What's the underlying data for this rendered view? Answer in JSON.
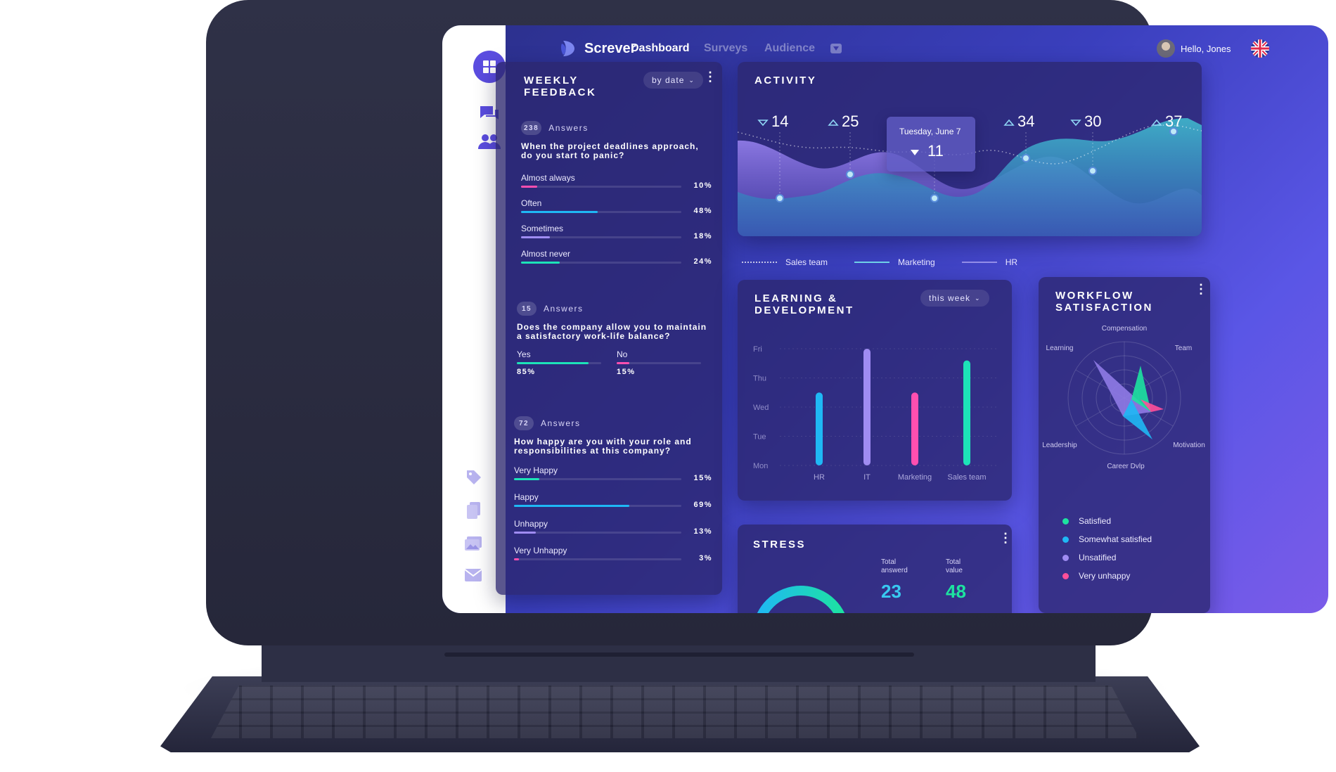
{
  "app": {
    "name": "Screver"
  },
  "topnav": [
    {
      "label": "Dashboard",
      "active": true
    },
    {
      "label": "Surveys",
      "active": false
    },
    {
      "label": "Audience",
      "active": false
    }
  ],
  "user": {
    "greeting": "Hello, Jones"
  },
  "sidebar": {
    "top_icons": [
      "dashboard-icon",
      "chat-icon",
      "users-icon"
    ],
    "bottom_icons": [
      "tag-icon",
      "document-icon",
      "gallery-icon",
      "mail-icon"
    ]
  },
  "weekly_feedback": {
    "title": "WEEKLY\nFEEDBACK",
    "filter": "by date",
    "q1": {
      "count": "238",
      "answers_label": "Answers",
      "question": "When the project deadlines approach, do you start to panic?",
      "options": [
        {
          "label": "Almost always",
          "pct": "10%",
          "value": 0.1,
          "color": "#ff4fb0"
        },
        {
          "label": "Often",
          "pct": "48%",
          "value": 0.48,
          "color": "#1fb8f5"
        },
        {
          "label": "Sometimes",
          "pct": "18%",
          "value": 0.18,
          "color": "#9f8cf2"
        },
        {
          "label": "Almost never",
          "pct": "24%",
          "value": 0.24,
          "color": "#1de3b8"
        }
      ]
    },
    "q2": {
      "count": "15",
      "answers_label": "Answers",
      "question": "Does the company allow you to maintain a satisfactory work-life balance?",
      "options": [
        {
          "label": "Yes",
          "pct": "85%",
          "value": 0.85,
          "color": "#1de3b8"
        },
        {
          "label": "No",
          "pct": "15%",
          "value": 0.15,
          "color": "#ff4fb0"
        }
      ]
    },
    "q3": {
      "count": "72",
      "answers_label": "Answers",
      "question": "How happy are you with your role and responsibilities at this company?",
      "options": [
        {
          "label": "Very Happy",
          "pct": "15%",
          "value": 0.15,
          "color": "#1de3b8"
        },
        {
          "label": "Happy",
          "pct": "69%",
          "value": 0.69,
          "color": "#1fb8f5"
        },
        {
          "label": "Unhappy",
          "pct": "13%",
          "value": 0.13,
          "color": "#9f8cf2"
        },
        {
          "label": "Very Unhappy",
          "pct": "3%",
          "value": 0.03,
          "color": "#ff4fb0"
        }
      ]
    }
  },
  "activity": {
    "title": "ACTIVITY",
    "points": [
      {
        "value": "14",
        "dir": "down"
      },
      {
        "value": "25",
        "dir": "up"
      },
      {
        "value": "11",
        "dir": "down"
      },
      {
        "value": "34",
        "dir": "up"
      },
      {
        "value": "30",
        "dir": "down"
      },
      {
        "value": "37",
        "dir": "up"
      }
    ],
    "tooltip": {
      "date": "Tuesday, June 7",
      "value": "11"
    },
    "legend": [
      {
        "label": "Sales team",
        "style": "dotted"
      },
      {
        "label": "Marketing",
        "style": "line-light"
      },
      {
        "label": "HR",
        "style": "line-dim"
      }
    ]
  },
  "learning": {
    "title": "LEARNING &\nDEVELOPMENT",
    "filter": "this week",
    "chart_data": {
      "type": "bar",
      "categories": [
        "HR",
        "IT",
        "Marketing",
        "Sales team"
      ],
      "y_ticks": [
        "Fri",
        "Thu",
        "Wed",
        "Tue",
        "Mon"
      ],
      "values": [
        2.5,
        4.0,
        2.5,
        3.6
      ],
      "ylim": [
        0,
        4
      ],
      "colors": [
        "#1fb8f5",
        "#9f8cf2",
        "#ff4fb0",
        "#1de3b8"
      ]
    }
  },
  "workflow": {
    "title": "WORKFLOW\nSATISFACTION",
    "radar_labels": [
      "Compensation",
      "Team",
      "Motivation",
      "Career Dvlp",
      "Leadership",
      "Learning"
    ],
    "legend": [
      {
        "label": "Satisfied",
        "color": "#1de3a0"
      },
      {
        "label": "Somewhat satisfied",
        "color": "#1fb8f5"
      },
      {
        "label": "Unsatified",
        "color": "#9f8cf2"
      },
      {
        "label": "Very unhappy",
        "color": "#ff4f9a"
      }
    ]
  },
  "stress": {
    "title": "STRESS",
    "total_answered_label": "Total answerd",
    "total_answered": "23",
    "total_value_label": "Total value",
    "total_value": "48",
    "ring_colors": [
      "#1de3a0",
      "#1fb8f5"
    ]
  }
}
